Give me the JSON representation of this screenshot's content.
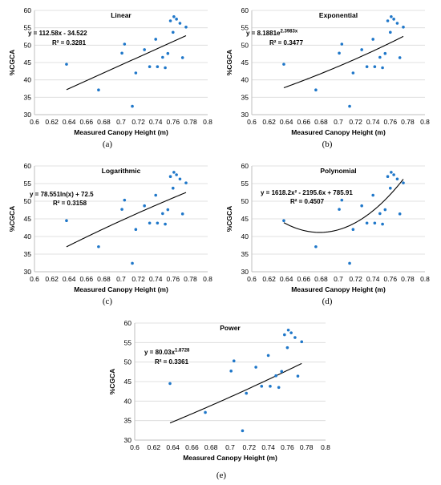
{
  "shared": {
    "xlabel": "Measured Canopy Height (m)",
    "ylabel": "%CGCA",
    "xlim": [
      0.6,
      0.8
    ],
    "ylim": [
      30,
      60
    ],
    "xticks": [
      "0.6",
      "0.62",
      "0.64",
      "0.66",
      "0.68",
      "0.7",
      "0.72",
      "0.74",
      "0.76",
      "0.78",
      "0.8"
    ],
    "yticks": [
      "30",
      "35",
      "40",
      "45",
      "50",
      "55",
      "60"
    ],
    "points": [
      [
        0.637,
        44.5
      ],
      [
        0.674,
        37.1
      ],
      [
        0.701,
        47.7
      ],
      [
        0.704,
        50.3
      ],
      [
        0.713,
        32.4
      ],
      [
        0.717,
        42.0
      ],
      [
        0.727,
        48.7
      ],
      [
        0.733,
        43.8
      ],
      [
        0.74,
        51.7
      ],
      [
        0.742,
        43.8
      ],
      [
        0.748,
        46.5
      ],
      [
        0.751,
        43.5
      ],
      [
        0.754,
        47.6
      ],
      [
        0.757,
        57.0
      ],
      [
        0.76,
        53.7
      ],
      [
        0.761,
        58.2
      ],
      [
        0.764,
        57.5
      ],
      [
        0.768,
        56.3
      ],
      [
        0.771,
        46.4
      ],
      [
        0.775,
        55.2
      ]
    ],
    "marker_color": "#1F77C9",
    "line_color": "#000000"
  },
  "chart_data": [
    {
      "id": "a",
      "type": "scatter",
      "title": "Linear",
      "caption": "(a)",
      "fit": "linear",
      "coef": [
        112.58,
        -34.522
      ],
      "equation": "y = 112.58x - 34.522",
      "r2": "R² = 0.3281"
    },
    {
      "id": "b",
      "type": "scatter",
      "title": "Exponential",
      "caption": "(b)",
      "fit": "exponential",
      "coef": [
        8.1881,
        2.3983
      ],
      "equation": "y = 8.1881e",
      "equation_sup": "2.3983x",
      "r2": "R² = 0.3477"
    },
    {
      "id": "c",
      "type": "scatter",
      "title": "Logarithmic",
      "caption": "(c)",
      "fit": "logarithmic",
      "coef": [
        78.551,
        72.5
      ],
      "equation": "y = 78.551ln(x) + 72.5",
      "r2": "R² = 0.3158"
    },
    {
      "id": "d",
      "type": "scatter",
      "title": "Polynomial",
      "caption": "(d)",
      "fit": "polynomial",
      "coef": [
        1618.2,
        -2195.6,
        785.91
      ],
      "equation": "y = 1618.2x² - 2195.6x + 785.91",
      "r2": "R² = 0.4507"
    },
    {
      "id": "e",
      "type": "scatter",
      "title": "Power",
      "caption": "(e)",
      "fit": "power",
      "coef": [
        80.03,
        1.8728
      ],
      "equation": "y = 80.03x",
      "equation_sup": "1.8728",
      "r2": "R² = 0.3361"
    }
  ]
}
